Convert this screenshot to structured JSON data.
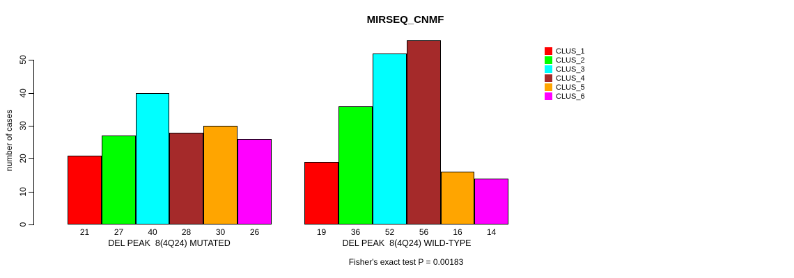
{
  "title": "MIRSEQ_CNMF",
  "ylabel": "number of cases",
  "footer": "Fisher's exact test P = 0.00183",
  "chart_data": {
    "type": "bar",
    "title": "MIRSEQ_CNMF",
    "xlabel": "",
    "ylabel": "number of cases",
    "ylim": [
      0,
      50
    ],
    "yticks": [
      0,
      10,
      20,
      30,
      40,
      50
    ],
    "grid": false,
    "legend_position": "right",
    "categories": [
      "DEL PEAK  8(4Q24) MUTATED",
      "DEL PEAK  8(4Q24) WILD-TYPE"
    ],
    "series": [
      {
        "name": "CLUS_1",
        "color": "#ff0000",
        "values": [
          21,
          19
        ]
      },
      {
        "name": "CLUS_2",
        "color": "#00ff00",
        "values": [
          27,
          36
        ]
      },
      {
        "name": "CLUS_3",
        "color": "#00ffff",
        "values": [
          40,
          52
        ]
      },
      {
        "name": "CLUS_4",
        "color": "#a52a2a",
        "values": [
          28,
          56
        ]
      },
      {
        "name": "CLUS_5",
        "color": "#ffa500",
        "values": [
          30,
          16
        ]
      },
      {
        "name": "CLUS_6",
        "color": "#ff00ff",
        "values": [
          26,
          14
        ]
      }
    ],
    "bar_value_labels_shown": true,
    "annotation": "Fisher's exact test P = 0.00183"
  }
}
